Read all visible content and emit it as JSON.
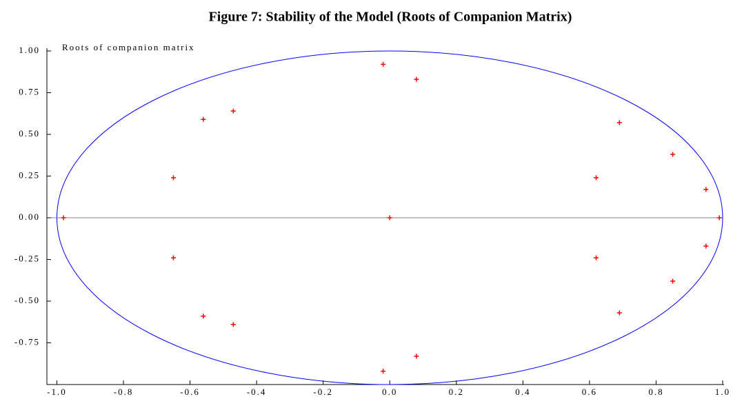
{
  "chart_data": {
    "type": "scatter",
    "title": "Figure 7: Stability of the Model (Roots of Companion Matrix)",
    "annotation": "Roots of companion matrix",
    "series": [
      {
        "name": "Roots",
        "color": "#ff0000",
        "x": [
          -0.02,
          0.08,
          0.69,
          0.85,
          0.95,
          0.99,
          0.62,
          -0.47,
          -0.56,
          -0.65,
          -0.98,
          0.0,
          -0.02,
          0.08,
          0.69,
          0.85,
          0.95,
          0.62,
          -0.47,
          -0.56,
          -0.65
        ],
        "values": [
          0.92,
          0.83,
          0.57,
          0.38,
          0.17,
          0.0,
          0.24,
          0.64,
          0.59,
          0.24,
          0.0,
          0.0,
          -0.92,
          -0.83,
          -0.57,
          -0.38,
          -0.17,
          -0.24,
          -0.64,
          -0.59,
          -0.24
        ]
      }
    ],
    "reference_circle": {
      "radius": 1,
      "color": "#0000ff"
    },
    "zero_line_color": "#808080",
    "xlim": [
      -1.03,
      1.0
    ],
    "ylim": [
      -1.0,
      1.0
    ],
    "xticks": [
      {
        "value": -1,
        "label": "-1.0"
      },
      {
        "value": -0.8,
        "label": "-0.8"
      },
      {
        "value": -0.6,
        "label": "-0.6"
      },
      {
        "value": -0.4,
        "label": "-0.4"
      },
      {
        "value": -0.2,
        "label": "-0.2"
      },
      {
        "value": 0,
        "label": "0.0"
      },
      {
        "value": 0.2,
        "label": "0.2"
      },
      {
        "value": 0.4,
        "label": "0.4"
      },
      {
        "value": 0.6,
        "label": "0.6"
      },
      {
        "value": 0.8,
        "label": "0.8"
      },
      {
        "value": 1,
        "label": "1.0"
      }
    ],
    "yticks": [
      {
        "value": -0.75,
        "label": "-0.75"
      },
      {
        "value": -0.5,
        "label": "-0.50"
      },
      {
        "value": -0.25,
        "label": "-0.25"
      },
      {
        "value": 0,
        "label": "0.00"
      },
      {
        "value": 0.25,
        "label": "0.25"
      },
      {
        "value": 0.5,
        "label": "0.50"
      },
      {
        "value": 0.75,
        "label": "0.75"
      },
      {
        "value": 1,
        "label": "1.00"
      }
    ]
  }
}
